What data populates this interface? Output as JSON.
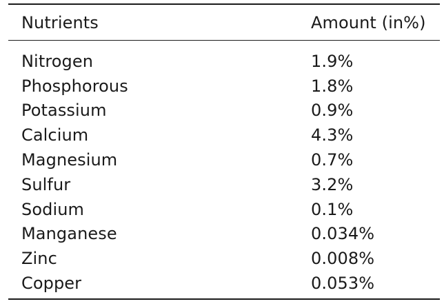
{
  "table": {
    "headers": [
      "Nutrients",
      "Amount (in%)"
    ],
    "rows": [
      {
        "nutrient": "Nitrogen",
        "amount": "1.9%"
      },
      {
        "nutrient": "Phosphorous",
        "amount": "1.8%"
      },
      {
        "nutrient": "Potassium",
        "amount": "0.9%"
      },
      {
        "nutrient": "Calcium",
        "amount": "4.3%"
      },
      {
        "nutrient": "Magnesium",
        "amount": "0.7%"
      },
      {
        "nutrient": "Sulfur",
        "amount": "3.2%"
      },
      {
        "nutrient": "Sodium",
        "amount": "0.1%"
      },
      {
        "nutrient": "Manganese",
        "amount": "0.034%"
      },
      {
        "nutrient": "Zinc",
        "amount": "0.008%"
      },
      {
        "nutrient": "Copper",
        "amount": "0.053%"
      }
    ]
  }
}
